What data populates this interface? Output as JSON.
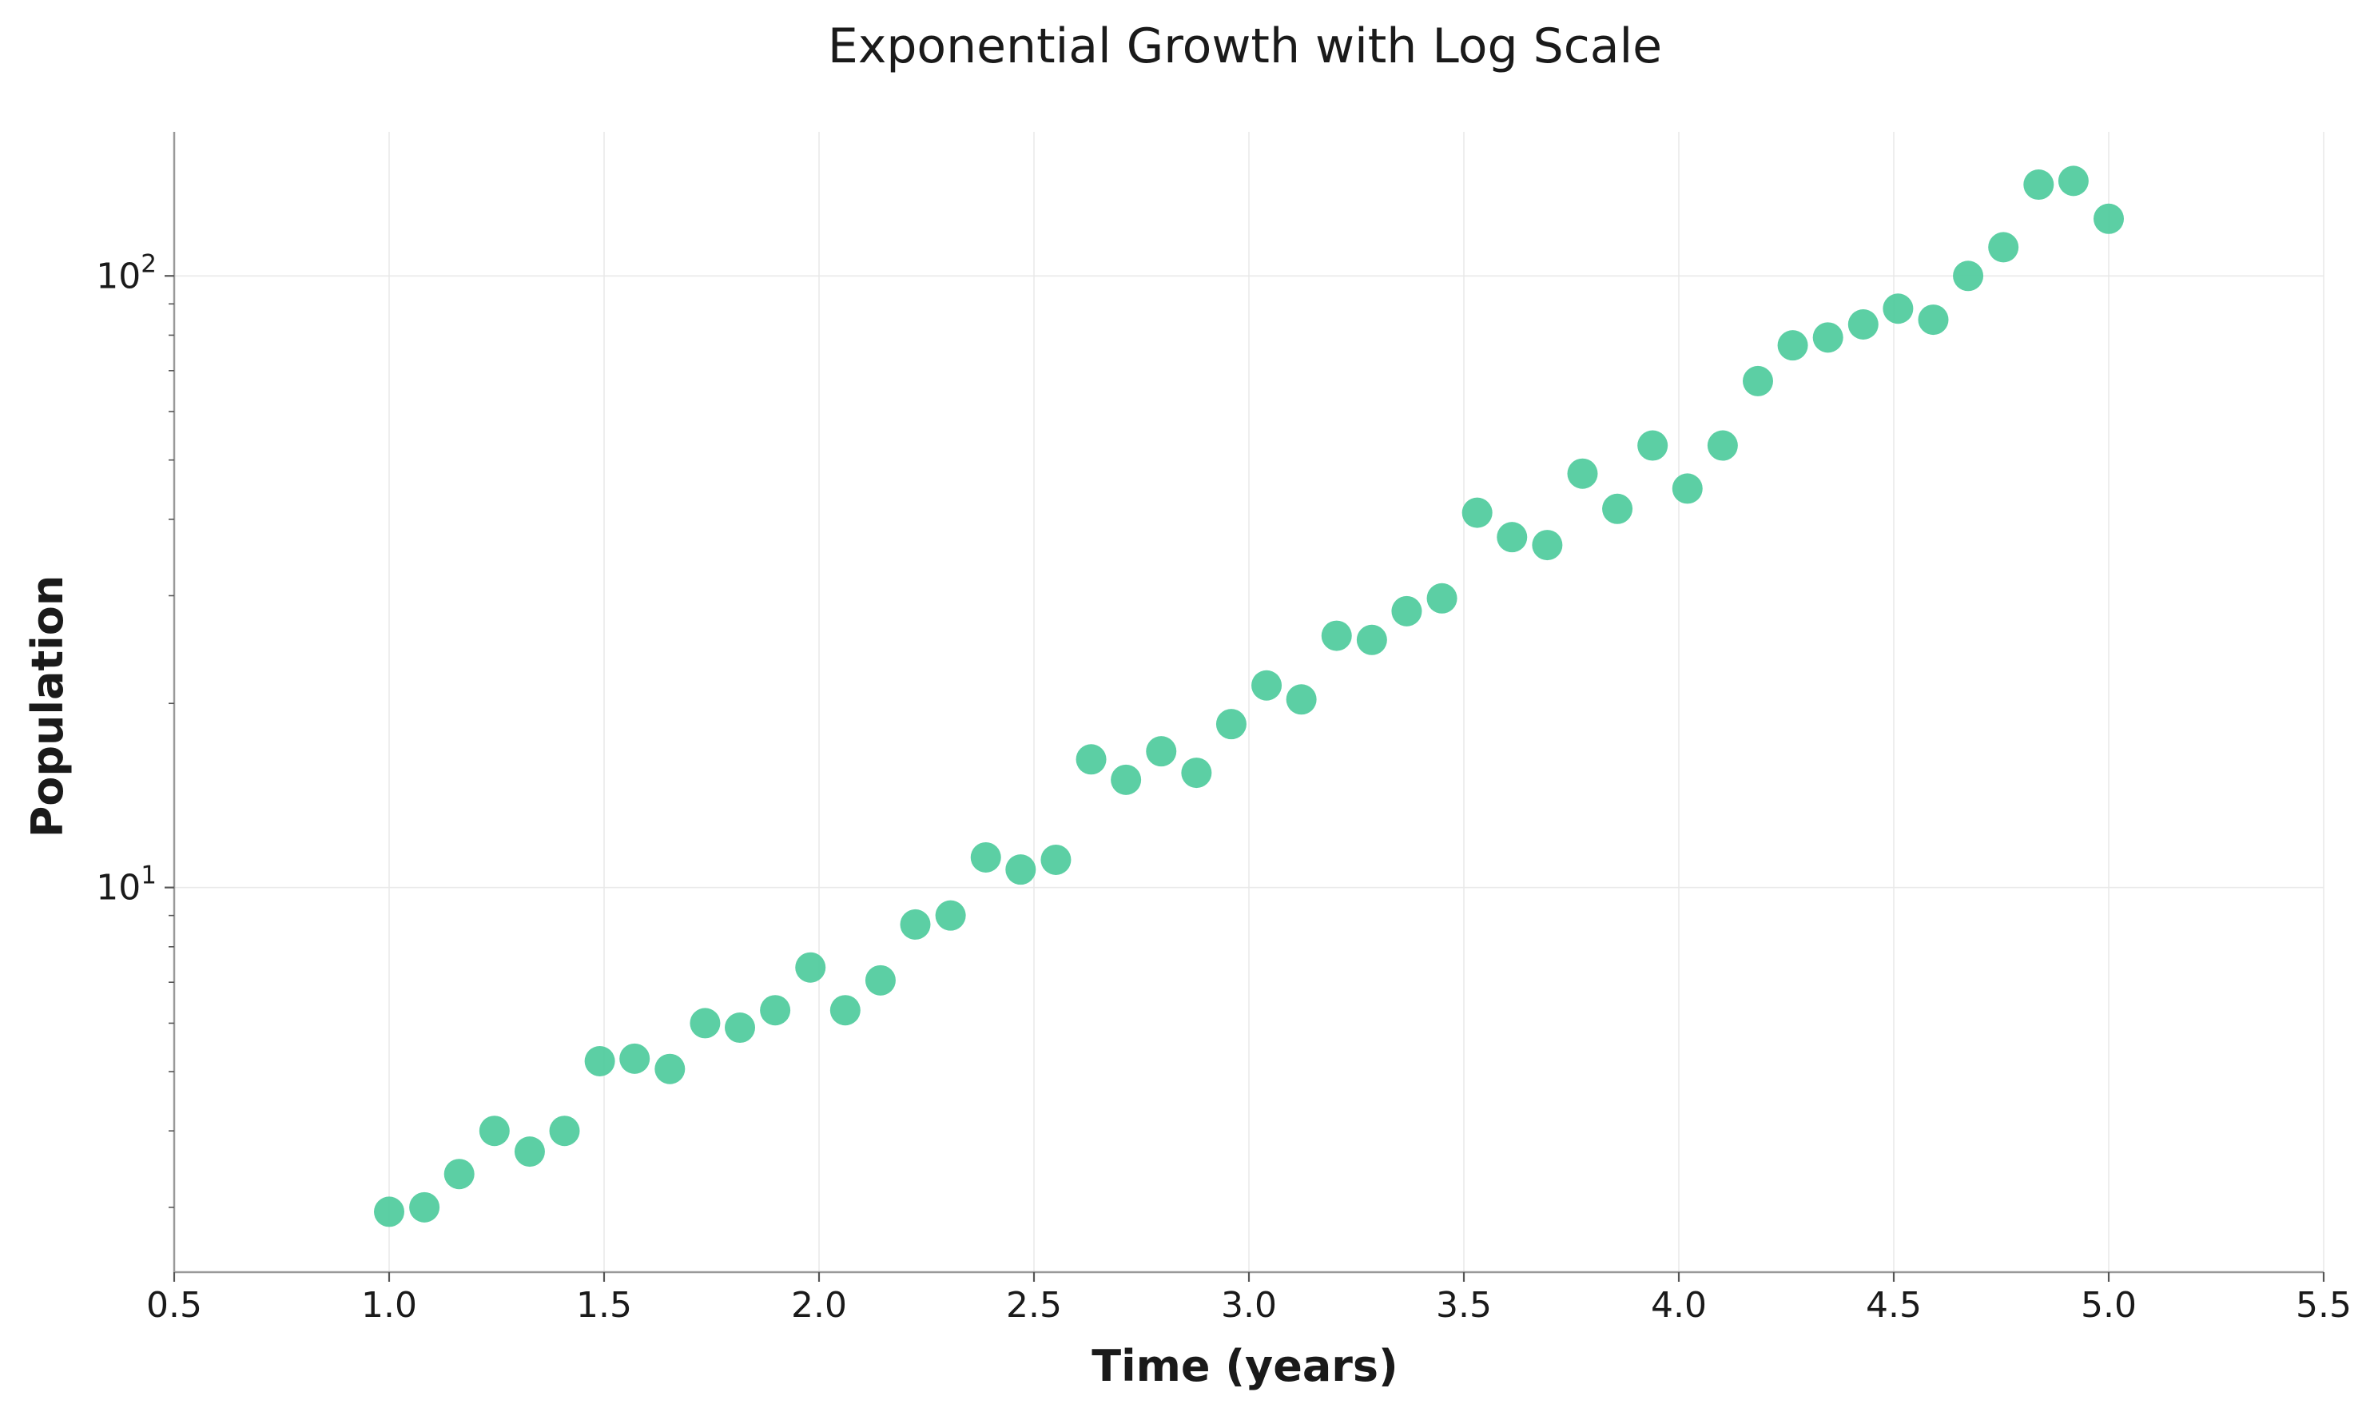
{
  "chart_data": {
    "type": "scatter",
    "title": "Exponential Growth with Log Scale",
    "xlabel": "Time (years)",
    "ylabel": "Population",
    "xlim": [
      0.5,
      5.5
    ],
    "ylim": [
      2.35,
      172
    ],
    "yscale": "log",
    "grid": true,
    "legend": "none",
    "color": "#4ecb9c",
    "x_ticks": [
      0.5,
      1.0,
      1.5,
      2.0,
      2.5,
      3.0,
      3.5,
      4.0,
      4.5,
      5.0,
      5.5
    ],
    "x_tick_labels": [
      "0.5",
      "1.0",
      "1.5",
      "2.0",
      "2.5",
      "3.0",
      "3.5",
      "4.0",
      "4.5",
      "5.0",
      "5.5"
    ],
    "y_ticks": [
      {
        "value": 10,
        "base": "10",
        "exp": "1"
      },
      {
        "value": 100,
        "base": "10",
        "exp": "2"
      }
    ],
    "x": [
      1.0,
      1.082,
      1.163,
      1.245,
      1.327,
      1.408,
      1.49,
      1.571,
      1.653,
      1.735,
      1.816,
      1.898,
      1.98,
      2.061,
      2.143,
      2.224,
      2.306,
      2.388,
      2.469,
      2.551,
      2.633,
      2.714,
      2.796,
      2.878,
      2.959,
      3.041,
      3.122,
      3.204,
      3.286,
      3.367,
      3.449,
      3.531,
      3.612,
      3.694,
      3.776,
      3.857,
      3.939,
      4.02,
      4.102,
      4.184,
      4.265,
      4.347,
      4.429,
      4.51,
      4.592,
      4.673,
      4.755,
      4.837,
      4.918,
      5.0
    ],
    "y": [
      2.95,
      3.0,
      3.4,
      4.0,
      3.7,
      4.0,
      5.2,
      5.25,
      5.05,
      6.0,
      5.9,
      6.3,
      7.4,
      6.3,
      7.05,
      8.7,
      9.0,
      11.2,
      10.7,
      11.1,
      16.2,
      15.0,
      16.7,
      15.4,
      18.5,
      21.4,
      20.3,
      25.8,
      25.4,
      28.3,
      29.7,
      41.0,
      37.4,
      36.3,
      47.5,
      41.6,
      52.8,
      44.9,
      52.8,
      67.3,
      77.0,
      79.3,
      83.3,
      88.4,
      84.8,
      100.0,
      111.4,
      141.0,
      143.0,
      124.0
    ]
  }
}
